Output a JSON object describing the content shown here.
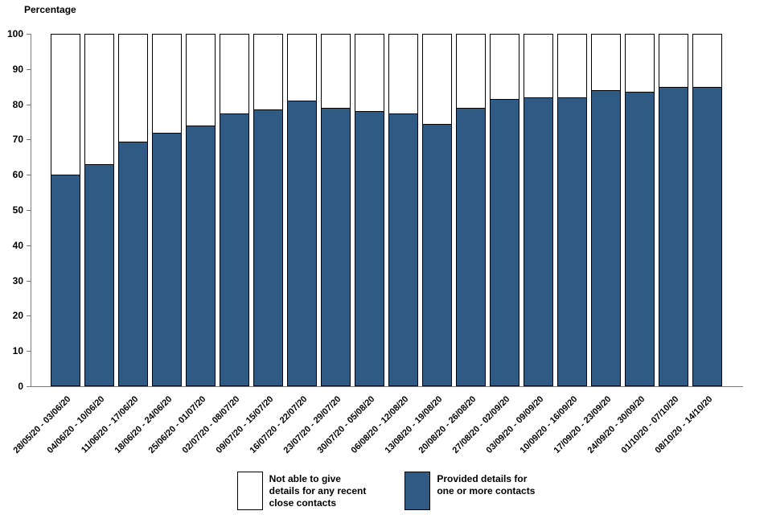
{
  "chart_data": {
    "type": "bar",
    "stacked": true,
    "title": "",
    "xlabel": "",
    "ylabel": "Percentage",
    "ylim": [
      0,
      100
    ],
    "yticks": [
      0,
      10,
      20,
      30,
      40,
      50,
      60,
      70,
      80,
      90,
      100
    ],
    "grid": false,
    "legend_position": "bottom",
    "categories": [
      "28/05/20 - 03/06/20",
      "04/06/20 - 10/06/20",
      "11/06/20 - 17/06/20",
      "18/06/20 - 24/06/20",
      "25/06/20 - 01/07/20",
      "02/07/20 - 08/07/20",
      "09/07/20 - 15/07/20",
      "16/07/20 - 22/07/20",
      "23/07/20 - 29/07/20",
      "30/07/20 - 05/08/20",
      "06/08/20 - 12/08/20",
      "13/08/20 - 19/08/20",
      "20/08/20 - 26/08/20",
      "27/08/20 - 02/09/20",
      "03/09/20 - 09/09/20",
      "10/09/20 - 16/09/20",
      "17/09/20 - 23/09/20",
      "24/09/20 - 30/09/20",
      "01/10/20 - 07/10/20",
      "08/10/20 - 14/10/20"
    ],
    "series": [
      {
        "name": "Provided details for one or more contacts",
        "color": "#2e5a84",
        "values": [
          60,
          63,
          69.5,
          72,
          74,
          77.5,
          78.5,
          81,
          79,
          78,
          77.5,
          74.5,
          79,
          81.5,
          82,
          82,
          84,
          83.5,
          85,
          85
        ]
      },
      {
        "name": "Not able to give details for any recent close contacts",
        "color": "#ffffff",
        "values": [
          40,
          37,
          30.5,
          28,
          26,
          22.5,
          21.5,
          19,
          21,
          22,
          22.5,
          25.5,
          21,
          18.5,
          18,
          18,
          16,
          16.5,
          15,
          15
        ]
      }
    ]
  },
  "legend": {
    "items": [
      {
        "label": "Not able to give\ndetails for any recent\nclose contacts",
        "color": "#ffffff"
      },
      {
        "label": "Provided details for\none or more contacts",
        "color": "#2e5a84"
      }
    ]
  }
}
